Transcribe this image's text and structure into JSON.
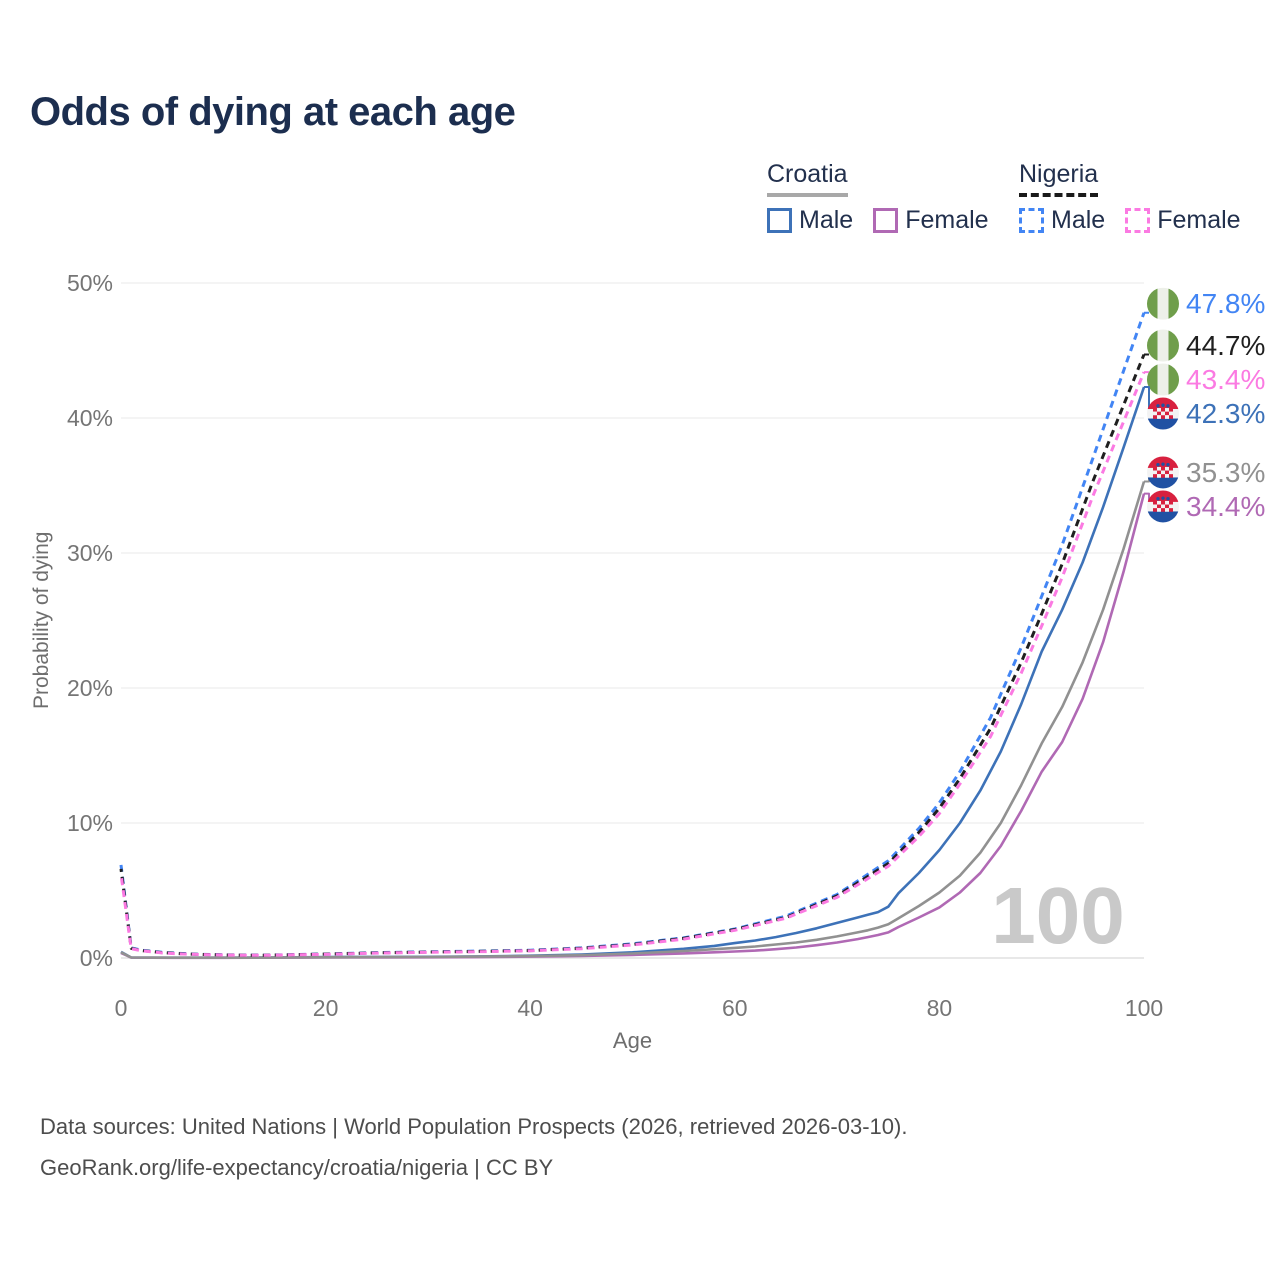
{
  "header": {
    "title": "Odds of dying at each age"
  },
  "legend": {
    "groups": [
      {
        "country": "Croatia",
        "line_style": "solid",
        "items": [
          {
            "label": "Male",
            "color": "#3d72b8"
          },
          {
            "label": "Female",
            "color": "#b069b4"
          }
        ]
      },
      {
        "country": "Nigeria",
        "line_style": "dashed",
        "items": [
          {
            "label": "Male",
            "color": "#4285f4"
          },
          {
            "label": "Female",
            "color": "#fb7ae2"
          }
        ]
      }
    ]
  },
  "chart_data": {
    "type": "line",
    "title": "Odds of dying at each age",
    "xlabel": "Age",
    "ylabel": "Probability of dying",
    "xlim": [
      0,
      100
    ],
    "ylim": [
      0,
      50
    ],
    "grid": true,
    "legend_position": "top-right",
    "age_indicator": "100",
    "x_ticks": [
      {
        "value": 0,
        "label": "0"
      },
      {
        "value": 20,
        "label": "20"
      },
      {
        "value": 40,
        "label": "40"
      },
      {
        "value": 60,
        "label": "60"
      },
      {
        "value": 80,
        "label": "80"
      },
      {
        "value": 100,
        "label": "100"
      }
    ],
    "y_ticks": [
      {
        "value": 0,
        "label": "0%"
      },
      {
        "value": 10,
        "label": "10%"
      },
      {
        "value": 20,
        "label": "20%"
      },
      {
        "value": 30,
        "label": "30%"
      },
      {
        "value": 40,
        "label": "40%"
      },
      {
        "value": 50,
        "label": "50%"
      }
    ],
    "series": [
      {
        "name": "Croatia Male",
        "country": "Croatia",
        "sex": "Male",
        "color": "#3d72b8",
        "dashed": false,
        "end_label": "42.3%",
        "flag_icon": "croatia-flag-icon",
        "points": [
          [
            0,
            0.45
          ],
          [
            1,
            0.04
          ],
          [
            5,
            0.02
          ],
          [
            10,
            0.02
          ],
          [
            15,
            0.04
          ],
          [
            20,
            0.07
          ],
          [
            25,
            0.08
          ],
          [
            30,
            0.09
          ],
          [
            35,
            0.12
          ],
          [
            40,
            0.17
          ],
          [
            45,
            0.26
          ],
          [
            50,
            0.42
          ],
          [
            55,
            0.68
          ],
          [
            58,
            0.9
          ],
          [
            60,
            1.1
          ],
          [
            62,
            1.3
          ],
          [
            64,
            1.55
          ],
          [
            66,
            1.85
          ],
          [
            68,
            2.2
          ],
          [
            70,
            2.6
          ],
          [
            72,
            3.0
          ],
          [
            73,
            3.2
          ],
          [
            74,
            3.4
          ],
          [
            75,
            3.8
          ],
          [
            76,
            4.8
          ],
          [
            78,
            6.3
          ],
          [
            80,
            8.0
          ],
          [
            82,
            10.0
          ],
          [
            84,
            12.4
          ],
          [
            86,
            15.3
          ],
          [
            88,
            18.8
          ],
          [
            90,
            22.7
          ],
          [
            92,
            25.8
          ],
          [
            94,
            29.3
          ],
          [
            96,
            33.4
          ],
          [
            98,
            37.8
          ],
          [
            100,
            42.3
          ]
        ]
      },
      {
        "name": "Croatia Female",
        "country": "Croatia",
        "sex": "Female",
        "color": "#b069b4",
        "dashed": false,
        "end_label": "34.4%",
        "flag_icon": "croatia-flag-icon",
        "points": [
          [
            0,
            0.38
          ],
          [
            1,
            0.03
          ],
          [
            5,
            0.015
          ],
          [
            10,
            0.015
          ],
          [
            15,
            0.025
          ],
          [
            20,
            0.04
          ],
          [
            25,
            0.045
          ],
          [
            30,
            0.055
          ],
          [
            35,
            0.07
          ],
          [
            40,
            0.1
          ],
          [
            45,
            0.15
          ],
          [
            50,
            0.23
          ],
          [
            55,
            0.34
          ],
          [
            58,
            0.42
          ],
          [
            60,
            0.48
          ],
          [
            62,
            0.55
          ],
          [
            64,
            0.65
          ],
          [
            66,
            0.78
          ],
          [
            68,
            0.95
          ],
          [
            70,
            1.15
          ],
          [
            72,
            1.4
          ],
          [
            73,
            1.55
          ],
          [
            74,
            1.7
          ],
          [
            75,
            1.9
          ],
          [
            76,
            2.3
          ],
          [
            78,
            3.0
          ],
          [
            80,
            3.75
          ],
          [
            82,
            4.85
          ],
          [
            84,
            6.3
          ],
          [
            86,
            8.3
          ],
          [
            88,
            10.9
          ],
          [
            90,
            13.8
          ],
          [
            92,
            16.0
          ],
          [
            94,
            19.2
          ],
          [
            96,
            23.4
          ],
          [
            98,
            28.6
          ],
          [
            100,
            34.4
          ]
        ]
      },
      {
        "name": "Croatia",
        "country": "Croatia",
        "sex": "Both",
        "color": "#919191",
        "dashed": false,
        "end_label": "35.3%",
        "flag_icon": "croatia-flag-icon",
        "points": [
          [
            0,
            0.42
          ],
          [
            1,
            0.035
          ],
          [
            5,
            0.02
          ],
          [
            10,
            0.02
          ],
          [
            15,
            0.03
          ],
          [
            20,
            0.055
          ],
          [
            25,
            0.065
          ],
          [
            30,
            0.075
          ],
          [
            35,
            0.1
          ],
          [
            40,
            0.14
          ],
          [
            45,
            0.21
          ],
          [
            50,
            0.33
          ],
          [
            55,
            0.52
          ],
          [
            58,
            0.65
          ],
          [
            60,
            0.75
          ],
          [
            62,
            0.85
          ],
          [
            64,
            1.0
          ],
          [
            66,
            1.15
          ],
          [
            68,
            1.35
          ],
          [
            70,
            1.6
          ],
          [
            72,
            1.9
          ],
          [
            73,
            2.05
          ],
          [
            74,
            2.25
          ],
          [
            75,
            2.5
          ],
          [
            76,
            2.95
          ],
          [
            78,
            3.85
          ],
          [
            80,
            4.85
          ],
          [
            82,
            6.1
          ],
          [
            84,
            7.8
          ],
          [
            86,
            10.0
          ],
          [
            88,
            12.8
          ],
          [
            90,
            15.9
          ],
          [
            92,
            18.6
          ],
          [
            94,
            21.9
          ],
          [
            96,
            25.8
          ],
          [
            98,
            30.3
          ],
          [
            100,
            35.3
          ]
        ]
      },
      {
        "name": "Nigeria Male",
        "country": "Nigeria",
        "sex": "Male",
        "color": "#4285f4",
        "dashed": true,
        "end_label": "47.8%",
        "flag_icon": "nigeria-flag-icon",
        "points": [
          [
            0,
            6.9
          ],
          [
            1,
            0.75
          ],
          [
            2,
            0.58
          ],
          [
            4,
            0.42
          ],
          [
            6,
            0.33
          ],
          [
            8,
            0.27
          ],
          [
            10,
            0.24
          ],
          [
            12,
            0.22
          ],
          [
            14,
            0.22
          ],
          [
            16,
            0.24
          ],
          [
            18,
            0.27
          ],
          [
            20,
            0.3
          ],
          [
            25,
            0.4
          ],
          [
            30,
            0.46
          ],
          [
            35,
            0.51
          ],
          [
            40,
            0.58
          ],
          [
            45,
            0.75
          ],
          [
            50,
            1.05
          ],
          [
            55,
            1.5
          ],
          [
            60,
            2.15
          ],
          [
            65,
            3.1
          ],
          [
            70,
            4.7
          ],
          [
            75,
            7.2
          ],
          [
            78,
            9.6
          ],
          [
            80,
            11.5
          ],
          [
            82,
            13.8
          ],
          [
            85,
            17.8
          ],
          [
            88,
            23.0
          ],
          [
            90,
            26.8
          ],
          [
            92,
            30.6
          ],
          [
            95,
            37.0
          ],
          [
            100,
            47.8
          ]
        ]
      },
      {
        "name": "Nigeria",
        "country": "Nigeria",
        "sex": "Both",
        "color": "#1f1f1f",
        "dashed": true,
        "end_label": "44.7%",
        "flag_icon": "nigeria-flag-icon",
        "points": [
          [
            0,
            6.6
          ],
          [
            1,
            0.72
          ],
          [
            2,
            0.55
          ],
          [
            4,
            0.4
          ],
          [
            6,
            0.31
          ],
          [
            8,
            0.26
          ],
          [
            10,
            0.23
          ],
          [
            12,
            0.21
          ],
          [
            14,
            0.21
          ],
          [
            16,
            0.23
          ],
          [
            18,
            0.26
          ],
          [
            20,
            0.29
          ],
          [
            25,
            0.38
          ],
          [
            30,
            0.44
          ],
          [
            35,
            0.49
          ],
          [
            40,
            0.55
          ],
          [
            45,
            0.72
          ],
          [
            50,
            1.0
          ],
          [
            55,
            1.45
          ],
          [
            60,
            2.1
          ],
          [
            65,
            3.0
          ],
          [
            70,
            4.6
          ],
          [
            75,
            7.0
          ],
          [
            78,
            9.3
          ],
          [
            80,
            11.1
          ],
          [
            82,
            13.3
          ],
          [
            85,
            17.0
          ],
          [
            88,
            21.9
          ],
          [
            90,
            25.5
          ],
          [
            92,
            29.2
          ],
          [
            95,
            35.3
          ],
          [
            100,
            44.7
          ]
        ]
      },
      {
        "name": "Nigeria Female",
        "country": "Nigeria",
        "sex": "Female",
        "color": "#fb7ae2",
        "dashed": true,
        "end_label": "43.4%",
        "flag_icon": "nigeria-flag-icon",
        "points": [
          [
            0,
            6.2
          ],
          [
            1,
            0.69
          ],
          [
            2,
            0.53
          ],
          [
            4,
            0.38
          ],
          [
            6,
            0.3
          ],
          [
            8,
            0.25
          ],
          [
            10,
            0.22
          ],
          [
            12,
            0.2
          ],
          [
            14,
            0.2
          ],
          [
            16,
            0.22
          ],
          [
            18,
            0.25
          ],
          [
            20,
            0.27
          ],
          [
            25,
            0.36
          ],
          [
            30,
            0.42
          ],
          [
            35,
            0.47
          ],
          [
            40,
            0.53
          ],
          [
            45,
            0.69
          ],
          [
            50,
            0.96
          ],
          [
            55,
            1.4
          ],
          [
            60,
            2.05
          ],
          [
            65,
            2.95
          ],
          [
            70,
            4.5
          ],
          [
            75,
            6.8
          ],
          [
            78,
            9.0
          ],
          [
            80,
            10.7
          ],
          [
            82,
            12.9
          ],
          [
            85,
            16.4
          ],
          [
            88,
            21.1
          ],
          [
            90,
            24.6
          ],
          [
            92,
            28.2
          ],
          [
            95,
            34.2
          ],
          [
            100,
            43.4
          ]
        ]
      }
    ]
  },
  "footer": {
    "line1": "Data sources: United Nations | World Population Prospects (2026, retrieved 2026-03-10).",
    "line2": "GeoRank.org/life-expectancy/croatia/nigeria | CC BY"
  },
  "colors": {
    "title_text": "#1c2e4f",
    "tick_text": "#757575",
    "grid_line": "#eeeeee",
    "zero_line": "#d9d9d9",
    "watermark": "#c9c9c9",
    "croatia_flag_red": "#d8213f",
    "croatia_flag_blue": "#2051a3",
    "nigeria_flag_green": "#6f9e4b"
  }
}
